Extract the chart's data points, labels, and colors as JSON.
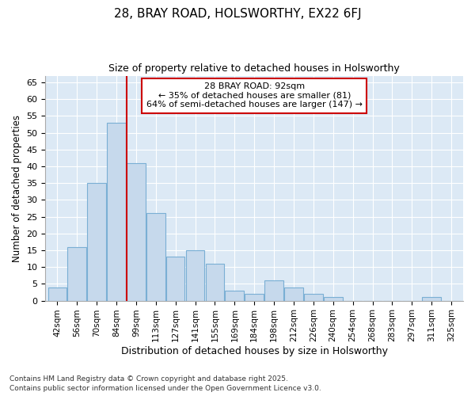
{
  "title1": "28, BRAY ROAD, HOLSWORTHY, EX22 6FJ",
  "title2": "Size of property relative to detached houses in Holsworthy",
  "xlabel": "Distribution of detached houses by size in Holsworthy",
  "ylabel": "Number of detached properties",
  "bin_labels": [
    "42sqm",
    "56sqm",
    "70sqm",
    "84sqm",
    "99sqm",
    "113sqm",
    "127sqm",
    "141sqm",
    "155sqm",
    "169sqm",
    "184sqm",
    "198sqm",
    "212sqm",
    "226sqm",
    "240sqm",
    "254sqm",
    "268sqm",
    "283sqm",
    "297sqm",
    "311sqm",
    "325sqm"
  ],
  "values": [
    4,
    16,
    35,
    53,
    41,
    26,
    13,
    15,
    11,
    3,
    2,
    6,
    4,
    2,
    1,
    0,
    0,
    0,
    0,
    1,
    0
  ],
  "bar_color": "#c6d9ec",
  "bar_edge_color": "#7aafd4",
  "annotation_line1": "28 BRAY ROAD: 92sqm",
  "annotation_line2": "← 35% of detached houses are smaller (81)",
  "annotation_line3": "64% of semi-detached houses are larger (147) →",
  "annotation_box_color": "#ffffff",
  "annotation_box_edge": "#cc0000",
  "vline_color": "#cc0000",
  "vline_pos": 3.53,
  "ylim": [
    0,
    67
  ],
  "yticks": [
    0,
    5,
    10,
    15,
    20,
    25,
    30,
    35,
    40,
    45,
    50,
    55,
    60,
    65
  ],
  "footer1": "Contains HM Land Registry data © Crown copyright and database right 2025.",
  "footer2": "Contains public sector information licensed under the Open Government Licence v3.0.",
  "bg_color": "#ffffff",
  "plot_bg_color": "#dce9f5"
}
